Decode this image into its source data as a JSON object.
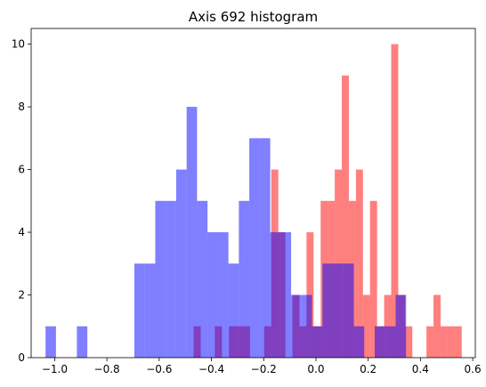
{
  "chart_data": {
    "type": "histogram",
    "title": "Axis 692 histogram",
    "xlabel": "",
    "ylabel": "",
    "xlim": [
      -1.09,
      0.61
    ],
    "ylim": [
      0,
      10.5
    ],
    "x_ticks": [
      -1.0,
      -0.8,
      -0.6,
      -0.4,
      -0.2,
      0.0,
      0.2,
      0.4,
      0.6
    ],
    "y_ticks": [
      0,
      2,
      4,
      6,
      8,
      10
    ],
    "grid": false,
    "legend": "none",
    "overlap_color": "#8034c0",
    "series": [
      {
        "color": "#ff0000",
        "opacity": 0.5,
        "bins": [
          {
            "x0": -0.468,
            "x1": -0.441,
            "count": 1
          },
          {
            "x0": -0.387,
            "x1": -0.36,
            "count": 1
          },
          {
            "x0": -0.333,
            "x1": -0.306,
            "count": 1
          },
          {
            "x0": -0.306,
            "x1": -0.279,
            "count": 1
          },
          {
            "x0": -0.279,
            "x1": -0.252,
            "count": 1
          },
          {
            "x0": -0.198,
            "x1": -0.171,
            "count": 1
          },
          {
            "x0": -0.171,
            "x1": -0.144,
            "count": 6
          },
          {
            "x0": -0.144,
            "x1": -0.117,
            "count": 4
          },
          {
            "x0": -0.09,
            "x1": -0.063,
            "count": 2
          },
          {
            "x0": -0.063,
            "x1": -0.036,
            "count": 1
          },
          {
            "x0": -0.036,
            "x1": -0.009,
            "count": 4
          },
          {
            "x0": -0.009,
            "x1": 0.018,
            "count": 1
          },
          {
            "x0": 0.018,
            "x1": 0.045,
            "count": 5
          },
          {
            "x0": 0.045,
            "x1": 0.072,
            "count": 5
          },
          {
            "x0": 0.072,
            "x1": 0.099,
            "count": 6
          },
          {
            "x0": 0.099,
            "x1": 0.126,
            "count": 9
          },
          {
            "x0": 0.126,
            "x1": 0.153,
            "count": 5
          },
          {
            "x0": 0.153,
            "x1": 0.18,
            "count": 6
          },
          {
            "x0": 0.18,
            "x1": 0.207,
            "count": 2
          },
          {
            "x0": 0.207,
            "x1": 0.234,
            "count": 5
          },
          {
            "x0": 0.234,
            "x1": 0.261,
            "count": 1
          },
          {
            "x0": 0.261,
            "x1": 0.288,
            "count": 2
          },
          {
            "x0": 0.288,
            "x1": 0.315,
            "count": 10
          },
          {
            "x0": 0.315,
            "x1": 0.342,
            "count": 2
          },
          {
            "x0": 0.342,
            "x1": 0.369,
            "count": 1
          },
          {
            "x0": 0.423,
            "x1": 0.45,
            "count": 1
          },
          {
            "x0": 0.45,
            "x1": 0.477,
            "count": 2
          },
          {
            "x0": 0.477,
            "x1": 0.504,
            "count": 1
          },
          {
            "x0": 0.504,
            "x1": 0.531,
            "count": 1
          },
          {
            "x0": 0.531,
            "x1": 0.558,
            "count": 1
          }
        ]
      },
      {
        "color": "#0000ff",
        "opacity": 0.5,
        "bins": [
          {
            "x0": -1.035,
            "x1": -0.995,
            "count": 1
          },
          {
            "x0": -0.915,
            "x1": -0.875,
            "count": 1
          },
          {
            "x0": -0.695,
            "x1": -0.655,
            "count": 3
          },
          {
            "x0": -0.655,
            "x1": -0.615,
            "count": 3
          },
          {
            "x0": -0.615,
            "x1": -0.575,
            "count": 5
          },
          {
            "x0": -0.575,
            "x1": -0.535,
            "count": 5
          },
          {
            "x0": -0.535,
            "x1": -0.495,
            "count": 6
          },
          {
            "x0": -0.495,
            "x1": -0.455,
            "count": 8
          },
          {
            "x0": -0.455,
            "x1": -0.415,
            "count": 5
          },
          {
            "x0": -0.415,
            "x1": -0.375,
            "count": 4
          },
          {
            "x0": -0.375,
            "x1": -0.335,
            "count": 4
          },
          {
            "x0": -0.335,
            "x1": -0.295,
            "count": 3
          },
          {
            "x0": -0.295,
            "x1": -0.255,
            "count": 5
          },
          {
            "x0": -0.255,
            "x1": -0.215,
            "count": 7
          },
          {
            "x0": -0.215,
            "x1": -0.175,
            "count": 7
          },
          {
            "x0": -0.175,
            "x1": -0.135,
            "count": 4
          },
          {
            "x0": -0.135,
            "x1": -0.095,
            "count": 4
          },
          {
            "x0": -0.095,
            "x1": -0.055,
            "count": 2
          },
          {
            "x0": -0.055,
            "x1": -0.015,
            "count": 2
          },
          {
            "x0": -0.015,
            "x1": 0.025,
            "count": 1
          },
          {
            "x0": 0.025,
            "x1": 0.065,
            "count": 3
          },
          {
            "x0": 0.065,
            "x1": 0.105,
            "count": 3
          },
          {
            "x0": 0.105,
            "x1": 0.145,
            "count": 3
          },
          {
            "x0": 0.145,
            "x1": 0.185,
            "count": 1
          },
          {
            "x0": 0.185,
            "x1": 0.225,
            "count": 0
          },
          {
            "x0": 0.225,
            "x1": 0.265,
            "count": 1
          },
          {
            "x0": 0.265,
            "x1": 0.305,
            "count": 1
          },
          {
            "x0": 0.305,
            "x1": 0.345,
            "count": 2
          }
        ]
      }
    ]
  }
}
